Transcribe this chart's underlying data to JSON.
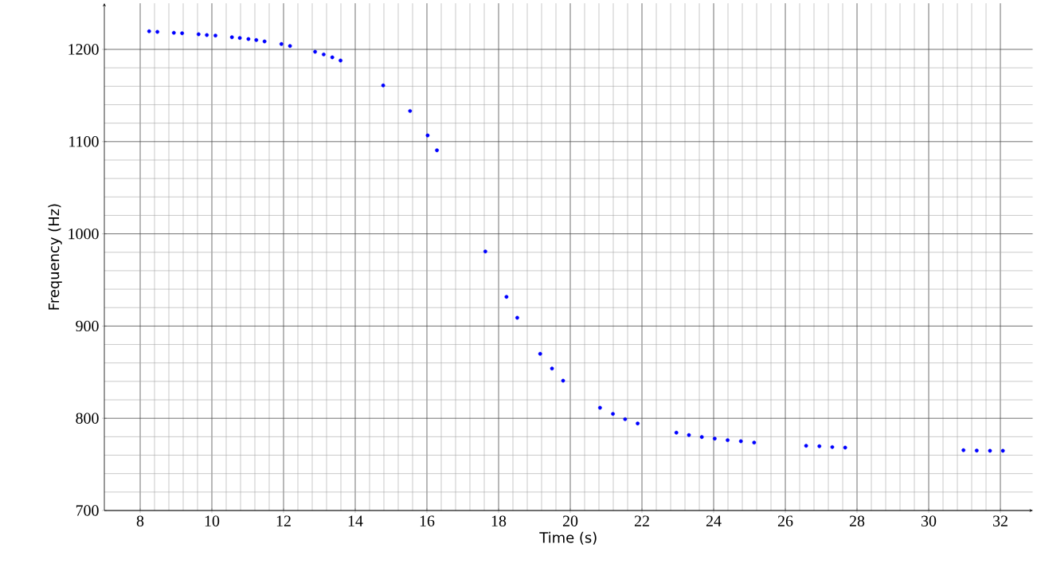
{
  "chart_data": {
    "type": "scatter",
    "xlabel": "Time (s)",
    "ylabel": "Frequency (Hz)",
    "x": [
      8.25,
      8.48,
      8.94,
      9.17,
      9.63,
      9.86,
      10.1,
      10.56,
      10.78,
      11.02,
      11.24,
      11.47,
      11.94,
      12.18,
      12.88,
      13.12,
      13.36,
      13.59,
      14.78,
      15.53,
      16.02,
      16.28,
      17.63,
      18.22,
      18.52,
      19.16,
      19.49,
      19.8,
      20.83,
      21.19,
      21.53,
      21.88,
      22.96,
      23.31,
      23.67,
      24.03,
      24.39,
      24.76,
      25.13,
      26.58,
      26.95,
      27.31,
      27.67,
      30.97,
      31.34,
      31.71,
      32.07
    ],
    "series": [
      {
        "color": "#0000ff",
        "values": [
          1219.6,
          1219,
          1218,
          1217.5,
          1216.4,
          1215.5,
          1215,
          1213.2,
          1212.4,
          1211.2,
          1210.1,
          1208.6,
          1205.8,
          1203.7,
          1197.4,
          1194.5,
          1191.4,
          1187.9,
          1160.9,
          1133.2,
          1106.7,
          1090.6,
          980.9,
          931.7,
          909,
          869.9,
          854,
          840.8,
          811.4,
          804.8,
          799,
          794.4,
          784.4,
          781.8,
          779.7,
          778,
          776.3,
          775.1,
          773.7,
          770.2,
          769.7,
          768.8,
          768.2,
          765.4,
          765,
          764.8,
          764.8
        ]
      }
    ],
    "xlim": [
      7,
      32.9
    ],
    "ylim": [
      700,
      1250
    ],
    "xticks": [
      8,
      10,
      12,
      14,
      16,
      18,
      20,
      22,
      24,
      26,
      28,
      30,
      32
    ],
    "yticks": [
      700,
      800,
      900,
      1000,
      1100,
      1200
    ],
    "grid": true,
    "marker": "circle"
  }
}
